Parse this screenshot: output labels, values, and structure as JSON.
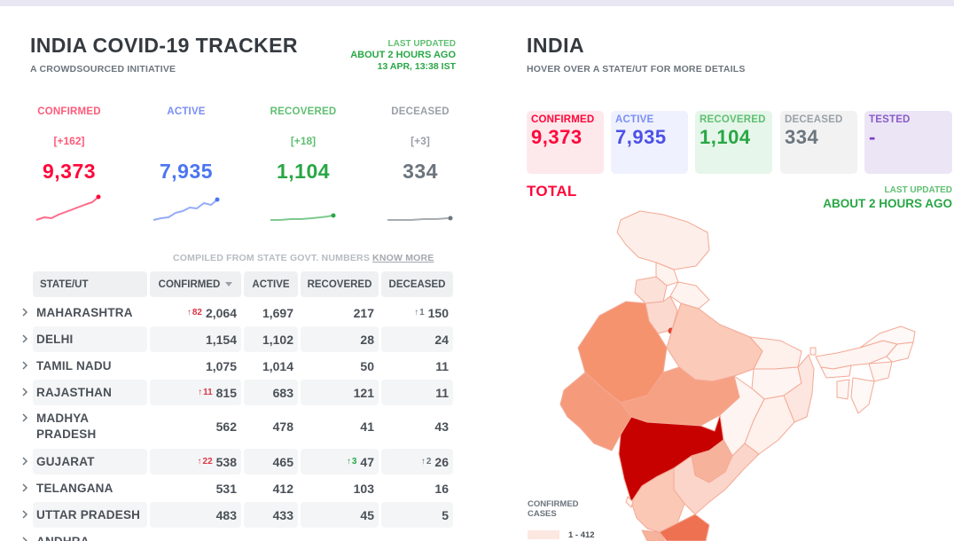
{
  "header": {
    "title": "INDIA COVID-19 TRACKER",
    "subtitle": "A CROWDSOURCED INITIATIVE",
    "last_updated_label": "LAST UPDATED",
    "last_updated_relative": "ABOUT 2 HOURS AGO",
    "last_updated_time": "13 APR, 13:38 IST"
  },
  "colors": {
    "confirmed": "#ff073a",
    "active": "#007bff",
    "recovered": "#28a745",
    "deceased": "#6c757d",
    "tested": "#7b5bc7"
  },
  "level": [
    {
      "label": "CONFIRMED",
      "delta": "[+162]",
      "value": "9,373",
      "color": "#ff073a"
    },
    {
      "label": "ACTIVE",
      "delta": "",
      "value": "7,935",
      "color": "#4c75f2"
    },
    {
      "label": "RECOVERED",
      "delta": "[+18]",
      "value": "1,104",
      "color": "#28a745"
    },
    {
      "label": "DECEASED",
      "delta": "[+3]",
      "value": "334",
      "color": "#6c757d"
    }
  ],
  "compiled": {
    "text": "COMPILED FROM STATE GOVT. NUMBERS",
    "link": "KNOW MORE"
  },
  "table": {
    "headers": [
      "STATE/UT",
      "CONFIRMED",
      "ACTIVE",
      "RECOVERED",
      "DECEASED"
    ],
    "rows": [
      {
        "state": "MAHARASHTRA",
        "confirmed_inc": "82",
        "confirmed": "2,064",
        "active": "1,697",
        "recovered_inc": "",
        "recovered": "217",
        "deceased_inc": "1",
        "deceased": "150"
      },
      {
        "state": "DELHI",
        "confirmed_inc": "",
        "confirmed": "1,154",
        "active": "1,102",
        "recovered_inc": "",
        "recovered": "28",
        "deceased_inc": "",
        "deceased": "24"
      },
      {
        "state": "TAMIL NADU",
        "confirmed_inc": "",
        "confirmed": "1,075",
        "active": "1,014",
        "recovered_inc": "",
        "recovered": "50",
        "deceased_inc": "",
        "deceased": "11"
      },
      {
        "state": "RAJASTHAN",
        "confirmed_inc": "11",
        "confirmed": "815",
        "active": "683",
        "recovered_inc": "",
        "recovered": "121",
        "deceased_inc": "",
        "deceased": "11"
      },
      {
        "state": "MADHYA PRADESH",
        "confirmed_inc": "",
        "confirmed": "562",
        "active": "478",
        "recovered_inc": "",
        "recovered": "41",
        "deceased_inc": "",
        "deceased": "43"
      },
      {
        "state": "GUJARAT",
        "confirmed_inc": "22",
        "confirmed": "538",
        "active": "465",
        "recovered_inc": "3",
        "recovered": "47",
        "deceased_inc": "2",
        "deceased": "26"
      },
      {
        "state": "TELANGANA",
        "confirmed_inc": "",
        "confirmed": "531",
        "active": "412",
        "recovered_inc": "",
        "recovered": "103",
        "deceased_inc": "",
        "deceased": "16"
      },
      {
        "state": "UTTAR PRADESH",
        "confirmed_inc": "",
        "confirmed": "483",
        "active": "433",
        "recovered_inc": "",
        "recovered": "45",
        "deceased_inc": "",
        "deceased": "5"
      },
      {
        "state": "ANDHRA",
        "confirmed_inc": "",
        "confirmed": "",
        "active": "",
        "recovered_inc": "",
        "recovered": "",
        "deceased_inc": "",
        "deceased": ""
      }
    ]
  },
  "map_panel": {
    "title": "INDIA",
    "subtitle": "HOVER OVER A STATE/UT FOR MORE DETAILS",
    "stats": [
      {
        "label": "CONFIRMED",
        "value": "9,373"
      },
      {
        "label": "ACTIVE",
        "value": "7,935"
      },
      {
        "label": "RECOVERED",
        "value": "1,104"
      },
      {
        "label": "DECEASED",
        "value": "334"
      },
      {
        "label": "TESTED",
        "value": "-"
      }
    ],
    "total_label": "TOTAL",
    "last_updated_label": "LAST UPDATED",
    "last_updated_value": "ABOUT 2 HOURS AGO",
    "legend_title_1": "CONFIRMED",
    "legend_title_2": "CASES",
    "legend_first_range": "1 - 412"
  }
}
